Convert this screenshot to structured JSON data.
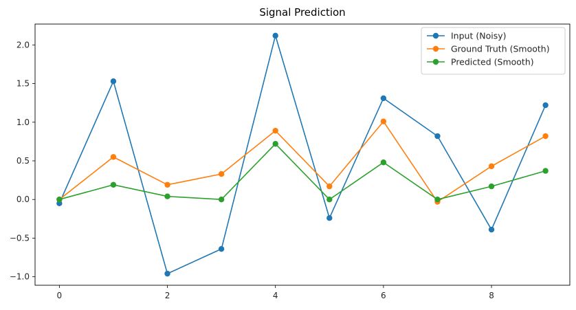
{
  "chart_data": {
    "type": "line",
    "title": "Signal Prediction",
    "xlabel": "",
    "ylabel": "",
    "x": [
      0,
      1,
      2,
      3,
      4,
      5,
      6,
      7,
      8,
      9
    ],
    "xlim": [
      -0.45,
      9.45
    ],
    "ylim": [
      -1.11,
      2.27
    ],
    "xticks": [
      0,
      2,
      4,
      6,
      8
    ],
    "xtick_labels": [
      "0",
      "2",
      "4",
      "6",
      "8"
    ],
    "yticks": [
      -1.0,
      -0.5,
      0.0,
      0.5,
      1.0,
      1.5,
      2.0
    ],
    "ytick_labels": [
      "−1.0",
      "−0.5",
      "0.0",
      "0.5",
      "1.0",
      "1.5",
      "2.0"
    ],
    "grid": false,
    "legend_position": "top-right",
    "series": [
      {
        "name": "Input (Noisy)",
        "color": "#1f77b4",
        "marker": "circle",
        "values": [
          -0.05,
          1.53,
          -0.96,
          -0.64,
          2.12,
          -0.24,
          1.31,
          0.82,
          -0.39,
          1.22
        ]
      },
      {
        "name": "Ground Truth (Smooth)",
        "color": "#ff7f0e",
        "marker": "circle",
        "values": [
          0.0,
          0.55,
          0.19,
          0.33,
          0.89,
          0.17,
          1.01,
          -0.03,
          0.43,
          0.82
        ]
      },
      {
        "name": "Predicted (Smooth)",
        "color": "#2ca02c",
        "marker": "circle",
        "values": [
          0.0,
          0.19,
          0.04,
          0.0,
          0.72,
          0.0,
          0.48,
          0.0,
          0.17,
          0.37
        ]
      }
    ]
  }
}
